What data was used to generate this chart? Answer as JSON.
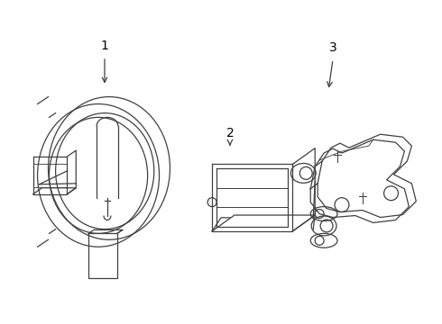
{
  "background_color": "#ffffff",
  "line_color": "#404040",
  "label_color": "#000000",
  "label_fontsize": 10,
  "fig_width": 4.9,
  "fig_height": 3.6,
  "dpi": 100
}
